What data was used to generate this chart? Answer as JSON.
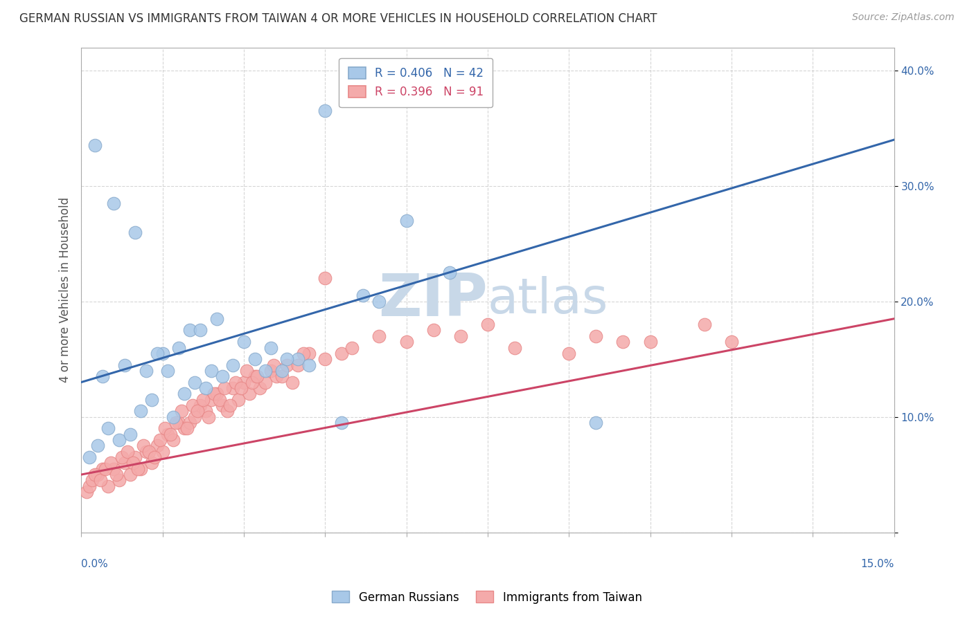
{
  "title": "GERMAN RUSSIAN VS IMMIGRANTS FROM TAIWAN 4 OR MORE VEHICLES IN HOUSEHOLD CORRELATION CHART",
  "source": "Source: ZipAtlas.com",
  "ylabel": "4 or more Vehicles in Household",
  "xlim": [
    0.0,
    15.0
  ],
  "ylim": [
    0.0,
    42.0
  ],
  "yticks": [
    0.0,
    10.0,
    20.0,
    30.0,
    40.0
  ],
  "xticks_minor": [
    0,
    1.5,
    3.0,
    4.5,
    6.0,
    7.5,
    9.0,
    10.5,
    12.0,
    13.5,
    15.0
  ],
  "legend_blue_r": "R = 0.406",
  "legend_blue_n": "N = 42",
  "legend_pink_r": "R = 0.396",
  "legend_pink_n": "N = 91",
  "blue_color": "#A8C8E8",
  "pink_color": "#F4AAAA",
  "blue_line_color": "#3366AA",
  "pink_line_color": "#CC4466",
  "watermark_color": "#C8D8E8",
  "blue_line_y0": 13.0,
  "blue_line_y1": 34.0,
  "pink_line_y0": 5.0,
  "pink_line_y1": 18.5,
  "blue_scatter_x": [
    4.5,
    0.25,
    0.6,
    1.0,
    1.5,
    2.0,
    2.5,
    3.0,
    1.2,
    1.8,
    2.2,
    2.8,
    3.5,
    4.0,
    0.4,
    0.8,
    1.4,
    1.6,
    2.4,
    2.6,
    3.2,
    3.8,
    4.2,
    5.5,
    6.0,
    6.8,
    0.15,
    0.3,
    0.5,
    0.7,
    0.9,
    1.1,
    1.3,
    1.7,
    1.9,
    2.1,
    2.3,
    3.4,
    4.8,
    9.5,
    3.7,
    5.2
  ],
  "blue_scatter_y": [
    36.5,
    33.5,
    28.5,
    26.0,
    15.5,
    17.5,
    18.5,
    16.5,
    14.0,
    16.0,
    17.5,
    14.5,
    16.0,
    15.0,
    13.5,
    14.5,
    15.5,
    14.0,
    14.0,
    13.5,
    15.0,
    15.0,
    14.5,
    20.0,
    27.0,
    22.5,
    6.5,
    7.5,
    9.0,
    8.0,
    8.5,
    10.5,
    11.5,
    10.0,
    12.0,
    13.0,
    12.5,
    14.0,
    9.5,
    9.5,
    14.0,
    20.5
  ],
  "pink_scatter_x": [
    4.5,
    0.1,
    0.15,
    0.2,
    0.3,
    0.4,
    0.5,
    0.6,
    0.7,
    0.8,
    0.9,
    1.0,
    1.1,
    1.2,
    1.3,
    1.4,
    1.5,
    1.6,
    1.7,
    1.8,
    1.9,
    2.0,
    2.1,
    2.2,
    2.3,
    2.4,
    2.5,
    2.6,
    2.7,
    2.8,
    2.9,
    3.0,
    3.1,
    3.2,
    3.3,
    3.4,
    3.5,
    3.6,
    3.7,
    3.8,
    3.9,
    4.0,
    4.2,
    4.5,
    4.8,
    5.0,
    5.5,
    6.0,
    6.5,
    7.0,
    7.5,
    8.0,
    9.0,
    9.5,
    10.0,
    0.25,
    0.35,
    0.45,
    0.55,
    0.65,
    0.75,
    0.85,
    0.95,
    1.05,
    1.15,
    1.25,
    1.35,
    1.45,
    1.55,
    1.65,
    1.75,
    1.85,
    1.95,
    2.05,
    2.15,
    2.25,
    2.35,
    2.45,
    2.55,
    2.65,
    2.75,
    2.85,
    2.95,
    3.05,
    3.15,
    3.25,
    3.55,
    4.1,
    10.5,
    11.5,
    12.0
  ],
  "pink_scatter_y": [
    22.0,
    3.5,
    4.0,
    4.5,
    5.0,
    5.5,
    4.0,
    5.5,
    4.5,
    6.0,
    5.0,
    6.5,
    5.5,
    7.0,
    6.0,
    7.5,
    7.0,
    8.5,
    8.0,
    9.5,
    9.0,
    9.5,
    10.0,
    11.0,
    10.5,
    11.5,
    12.0,
    11.0,
    10.5,
    12.5,
    11.5,
    13.0,
    12.0,
    13.5,
    12.5,
    13.0,
    14.0,
    13.5,
    13.5,
    14.5,
    13.0,
    14.5,
    15.5,
    15.0,
    15.5,
    16.0,
    17.0,
    16.5,
    17.5,
    17.0,
    18.0,
    16.0,
    15.5,
    17.0,
    16.5,
    5.0,
    4.5,
    5.5,
    6.0,
    5.0,
    6.5,
    7.0,
    6.0,
    5.5,
    7.5,
    7.0,
    6.5,
    8.0,
    9.0,
    8.5,
    9.5,
    10.5,
    9.0,
    11.0,
    10.5,
    11.5,
    10.0,
    12.0,
    11.5,
    12.5,
    11.0,
    13.0,
    12.5,
    14.0,
    13.0,
    13.5,
    14.5,
    15.5,
    16.5,
    18.0,
    16.5
  ]
}
